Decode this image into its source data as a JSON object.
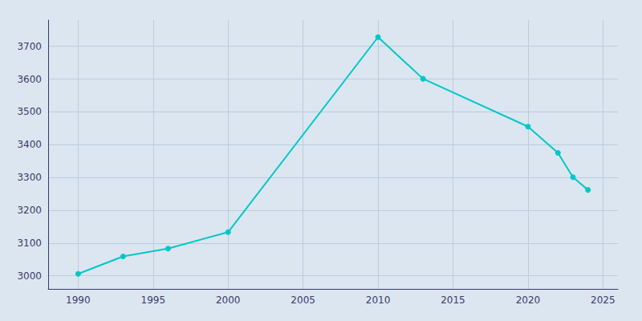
{
  "chart_data": {
    "type": "line",
    "x": [
      1990,
      1993,
      1996,
      2000,
      2010,
      2013,
      2020,
      2022,
      2023,
      2024
    ],
    "values": [
      3006,
      3059,
      3083,
      3133,
      3728,
      3601,
      3455,
      3375,
      3301,
      3262
    ],
    "color": "#00c8c8",
    "marker": "circle",
    "xlim": [
      1988,
      2026
    ],
    "xticks": [
      1990,
      1995,
      2000,
      2005,
      2010,
      2015,
      2020,
      2025
    ],
    "ylim": [
      2960,
      3780
    ],
    "yticks": [
      3000,
      3100,
      3200,
      3300,
      3400,
      3500,
      3600,
      3700
    ],
    "grid": true
  }
}
